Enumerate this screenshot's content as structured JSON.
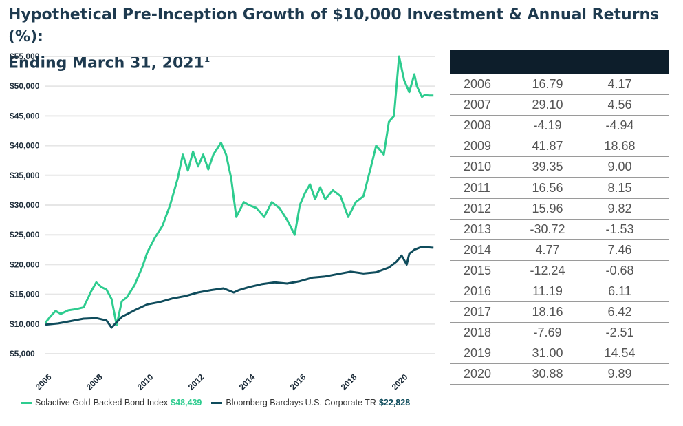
{
  "title": "Hypothetical Pre-Inception Growth of $10,000 Investment & Annual Returns (%):",
  "title_line2": "Ending March 31, 2021",
  "title_footnote": "1",
  "legend": [
    {
      "name": "Solactive Gold-Backed Bond Index",
      "value": "$48,439",
      "color": "#2ecc8f"
    },
    {
      "name": "Bloomberg Barclays U.S. Corporate TR",
      "value": "$22,828",
      "color": "#0f4c5c"
    }
  ],
  "colors": {
    "table_header": "#0d1e2b",
    "grid": "#e6e6e6",
    "tick_text": "#1e2d3a"
  },
  "table": {
    "rows": [
      [
        "2006",
        "16.79",
        "4.17"
      ],
      [
        "2007",
        "29.10",
        "4.56"
      ],
      [
        "2008",
        "-4.19",
        "-4.94"
      ],
      [
        "2009",
        "41.87",
        "18.68"
      ],
      [
        "2010",
        "39.35",
        "9.00"
      ],
      [
        "2011",
        "16.56",
        "8.15"
      ],
      [
        "2012",
        "15.96",
        "9.82"
      ],
      [
        "2013",
        "-30.72",
        "-1.53"
      ],
      [
        "2014",
        "4.77",
        "7.46"
      ],
      [
        "2015",
        "-12.24",
        "-0.68"
      ],
      [
        "2016",
        "11.19",
        "6.11"
      ],
      [
        "2017",
        "18.16",
        "6.42"
      ],
      [
        "2018",
        "-7.69",
        "-2.51"
      ],
      [
        "2019",
        "31.00",
        "14.54"
      ],
      [
        "2020",
        "30.88",
        "9.89"
      ]
    ]
  },
  "chart_data": {
    "type": "line",
    "xlabel": "",
    "ylabel": "",
    "xlim": [
      2006.0,
      2021.3
    ],
    "ylim": [
      5000,
      55000
    ],
    "grid": true,
    "legend_position": "bottom",
    "x_ticks": [
      "2006",
      "2008",
      "2010",
      "2012",
      "2014",
      "2016",
      "2018",
      "2020"
    ],
    "y_ticks": [
      "$5,000",
      "$10,000",
      "$15,000",
      "$20,000",
      "$25,000",
      "$30,000",
      "$35,000",
      "$40,000",
      "$45,000",
      "$50,000",
      "$55,000"
    ],
    "series": [
      {
        "name": "Solactive Gold-Backed Bond Index",
        "color": "#2ecc8f",
        "x": [
          2006.0,
          2006.2,
          2006.4,
          2006.6,
          2006.9,
          2007.2,
          2007.5,
          2007.8,
          2008.0,
          2008.2,
          2008.4,
          2008.6,
          2008.8,
          2009.0,
          2009.2,
          2009.5,
          2009.8,
          2010.0,
          2010.3,
          2010.6,
          2010.9,
          2011.2,
          2011.4,
          2011.6,
          2011.8,
          2012.0,
          2012.2,
          2012.4,
          2012.6,
          2012.9,
          2013.1,
          2013.3,
          2013.5,
          2013.8,
          2014.0,
          2014.3,
          2014.6,
          2014.9,
          2015.2,
          2015.5,
          2015.8,
          2016.0,
          2016.2,
          2016.4,
          2016.6,
          2016.8,
          2017.0,
          2017.3,
          2017.6,
          2017.9,
          2018.2,
          2018.5,
          2018.8,
          2019.0,
          2019.3,
          2019.5,
          2019.7,
          2019.9,
          2020.1,
          2020.3,
          2020.5,
          2020.6,
          2020.8,
          2020.9,
          2021.1,
          2021.25
        ],
        "values": [
          10200,
          11300,
          12200,
          11700,
          12300,
          12500,
          12800,
          15500,
          17000,
          16200,
          15800,
          14200,
          9800,
          13800,
          14500,
          16500,
          19500,
          22000,
          24500,
          26500,
          30000,
          34500,
          38500,
          35800,
          39000,
          36500,
          38500,
          36000,
          38500,
          40500,
          38500,
          34500,
          28000,
          30500,
          30000,
          29500,
          28000,
          30500,
          29500,
          27500,
          25000,
          30000,
          32000,
          33500,
          31000,
          33000,
          31000,
          32500,
          31500,
          28000,
          30500,
          31500,
          36500,
          40000,
          38500,
          44000,
          45000,
          55000,
          51000,
          49000,
          52000,
          50000,
          48200,
          48500,
          48439,
          48439
        ]
      },
      {
        "name": "Bloomberg Barclays U.S. Corporate TR",
        "color": "#0f4c5c",
        "x": [
          2006.0,
          2006.5,
          2007.0,
          2007.5,
          2008.0,
          2008.4,
          2008.6,
          2008.8,
          2009.0,
          2009.5,
          2010.0,
          2010.5,
          2011.0,
          2011.5,
          2012.0,
          2012.5,
          2013.0,
          2013.4,
          2013.6,
          2014.0,
          2014.5,
          2015.0,
          2015.5,
          2016.0,
          2016.5,
          2017.0,
          2017.5,
          2018.0,
          2018.5,
          2019.0,
          2019.5,
          2019.8,
          2020.0,
          2020.2,
          2020.3,
          2020.5,
          2020.8,
          2021.0,
          2021.25
        ],
        "values": [
          9900,
          10100,
          10500,
          10900,
          11000,
          10600,
          9400,
          10300,
          11200,
          12300,
          13300,
          13700,
          14300,
          14700,
          15300,
          15700,
          16000,
          15300,
          15700,
          16200,
          16700,
          17000,
          16800,
          17200,
          17800,
          18000,
          18400,
          18800,
          18500,
          18700,
          19500,
          20500,
          21500,
          20000,
          21800,
          22500,
          23000,
          22900,
          22828
        ]
      }
    ]
  }
}
